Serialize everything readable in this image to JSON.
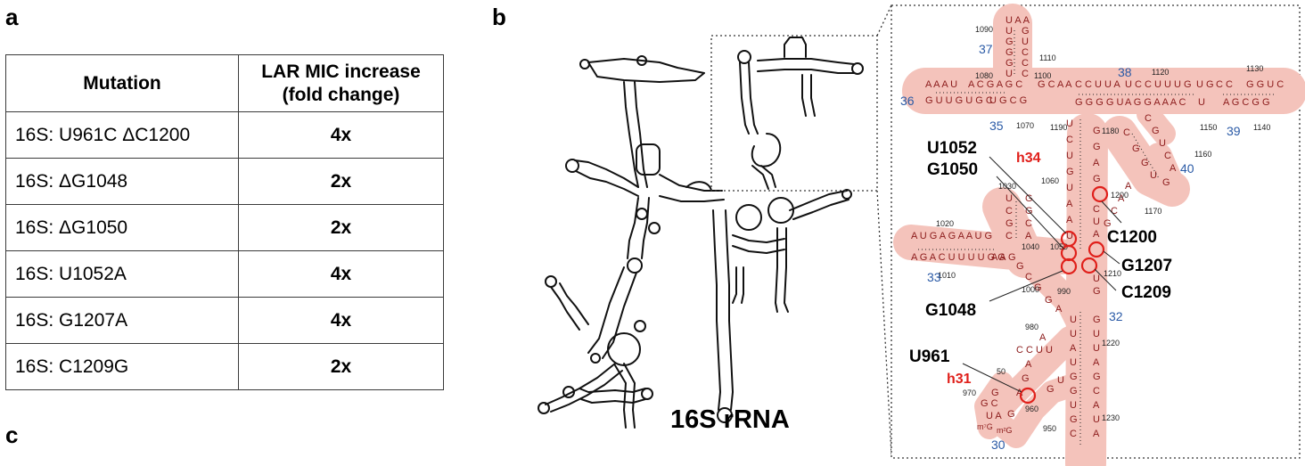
{
  "panels": {
    "a": "a",
    "b": "b",
    "c": "c"
  },
  "table": {
    "header_mutation": "Mutation",
    "header_fold_line1": "LAR MIC increase",
    "header_fold_line2": "(fold change)",
    "rows": [
      {
        "mutation": "16S: U961C ΔC1200",
        "fold": "4x"
      },
      {
        "mutation": "16S: ΔG1048",
        "fold": "2x"
      },
      {
        "mutation": "16S: ΔG1050",
        "fold": "2x"
      },
      {
        "mutation": "16S: U1052A",
        "fold": "4x"
      },
      {
        "mutation": "16S: G1207A",
        "fold": "4x"
      },
      {
        "mutation": "16S: C1209G",
        "fold": "2x"
      }
    ]
  },
  "overview": {
    "label": "16S rRNA"
  },
  "detail": {
    "helix_labels": {
      "h34": "h34",
      "h31": "h31"
    },
    "residue_callouts": {
      "u1052": "U1052",
      "g1050": "G1050",
      "c1200": "C1200",
      "g1207": "G1207",
      "c1209": "C1209",
      "g1048": "G1048",
      "u961": "U961"
    },
    "helix_numbers": [
      "37",
      "38",
      "36",
      "35",
      "39",
      "40",
      "33",
      "32",
      "30"
    ],
    "position_numbers": [
      "1090",
      "1110",
      "1120",
      "1130",
      "1080",
      "1100",
      "1070",
      "1190",
      "1180",
      "1150",
      "1140",
      "1160",
      "1060",
      "1200",
      "1170",
      "1030",
      "1020",
      "1040",
      "1050",
      "1210",
      "1010",
      "1000",
      "990",
      "980",
      "1220",
      "50",
      "970",
      "960",
      "950",
      "1230"
    ],
    "modified_bases": [
      "m⁷G",
      "m²G"
    ]
  },
  "colors": {
    "highlight": "#f4c3bb",
    "base_text": "#8b1a1a",
    "helix_number": "#2a5aa6",
    "callout_red": "#e0201b",
    "circle_red": "#e0201b"
  }
}
